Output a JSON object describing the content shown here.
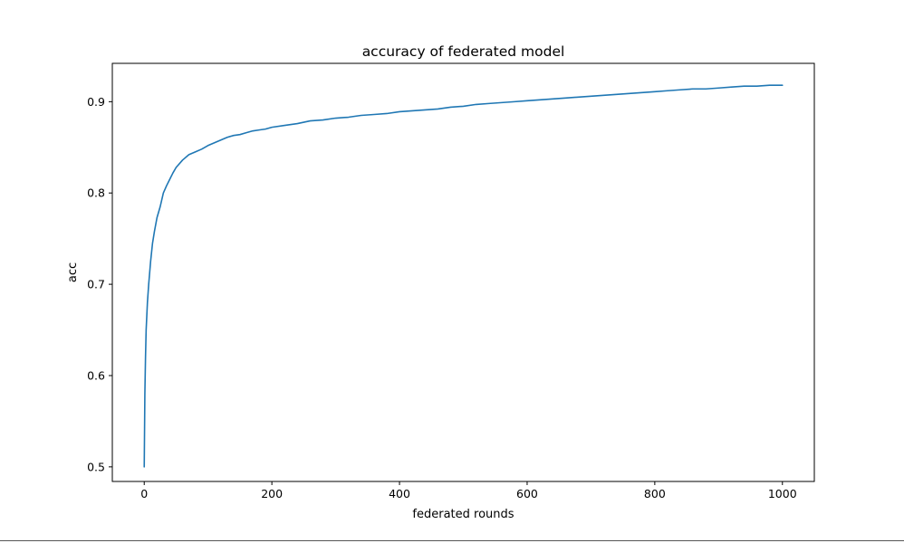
{
  "chart_data": {
    "type": "line",
    "title": "accuracy of federated model",
    "xlabel": "federated rounds",
    "ylabel": "acc",
    "xlim": [
      -50,
      1050
    ],
    "ylim": [
      0.484,
      0.942
    ],
    "x_ticks": [
      0,
      200,
      400,
      600,
      800,
      1000
    ],
    "x_tick_labels": [
      "0",
      "200",
      "400",
      "600",
      "800",
      "1000"
    ],
    "y_ticks": [
      0.5,
      0.6,
      0.7,
      0.8,
      0.9
    ],
    "y_tick_labels": [
      "0.5",
      "0.6",
      "0.7",
      "0.8",
      "0.9"
    ],
    "grid": false,
    "legend": "none",
    "series": [
      {
        "color": "#1f77b4",
        "x": [
          0,
          1,
          2,
          3,
          5,
          7,
          10,
          13,
          16,
          20,
          25,
          30,
          35,
          40,
          45,
          50,
          60,
          70,
          80,
          90,
          100,
          110,
          120,
          130,
          140,
          150,
          160,
          170,
          180,
          190,
          200,
          220,
          240,
          260,
          280,
          300,
          320,
          340,
          360,
          380,
          400,
          420,
          440,
          460,
          480,
          500,
          520,
          540,
          560,
          580,
          600,
          620,
          640,
          660,
          680,
          700,
          720,
          740,
          760,
          780,
          800,
          820,
          840,
          860,
          880,
          900,
          920,
          940,
          960,
          980,
          1000
        ],
        "y": [
          0.5,
          0.58,
          0.62,
          0.65,
          0.68,
          0.7,
          0.725,
          0.745,
          0.758,
          0.773,
          0.785,
          0.8,
          0.808,
          0.815,
          0.822,
          0.828,
          0.836,
          0.842,
          0.845,
          0.848,
          0.852,
          0.855,
          0.858,
          0.861,
          0.863,
          0.864,
          0.866,
          0.868,
          0.869,
          0.87,
          0.872,
          0.874,
          0.876,
          0.879,
          0.88,
          0.882,
          0.883,
          0.885,
          0.886,
          0.887,
          0.889,
          0.89,
          0.891,
          0.892,
          0.894,
          0.895,
          0.897,
          0.898,
          0.899,
          0.9,
          0.901,
          0.902,
          0.903,
          0.904,
          0.905,
          0.906,
          0.907,
          0.908,
          0.909,
          0.91,
          0.911,
          0.912,
          0.913,
          0.914,
          0.914,
          0.915,
          0.916,
          0.917,
          0.917,
          0.918,
          0.918
        ]
      }
    ]
  }
}
